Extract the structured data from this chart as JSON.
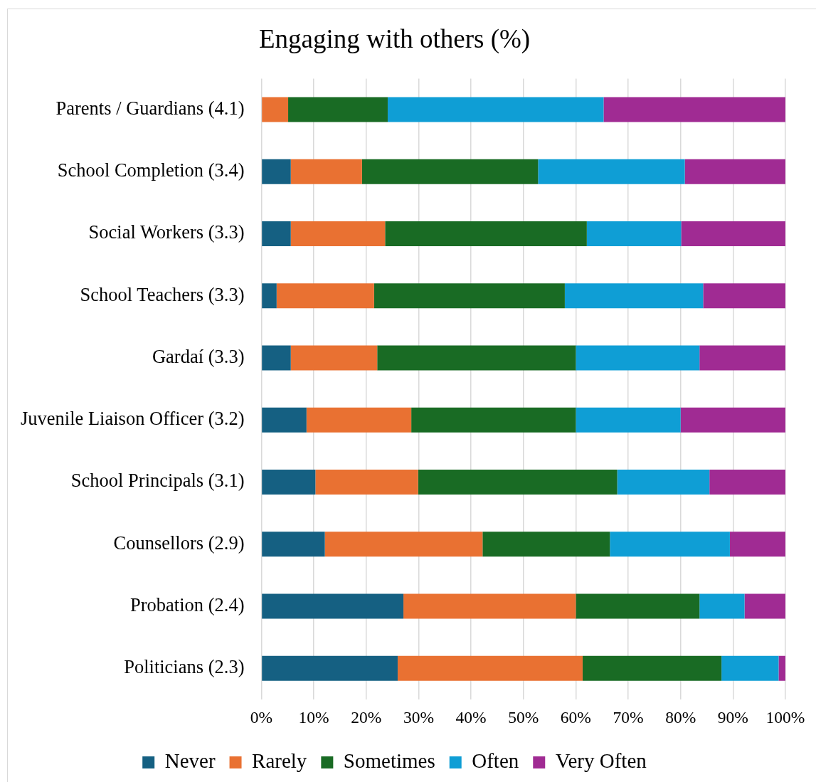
{
  "chart_data": {
    "type": "bar",
    "orientation": "horizontal",
    "stacked": true,
    "title": "Engaging with others (%)",
    "categories": [
      "Parents / Guardians (4.1)",
      "School Completion (3.4)",
      "Social Workers (3.3)",
      "School Teachers (3.3)",
      "Gardaí (3.3)",
      "Juvenile Liaison Officer (3.2)",
      "School Principals (3.1)",
      "Counsellors (2.9)",
      "Probation (2.4)",
      "Politicians (2.3)"
    ],
    "series": [
      {
        "name": "Never",
        "color": "#156082",
        "values": [
          0,
          5.6,
          5.6,
          2.9,
          5.6,
          8.6,
          10.3,
          12.1,
          27.1,
          26.0
        ]
      },
      {
        "name": "Rarely",
        "color": "#e97132",
        "values": [
          5.1,
          13.6,
          18.0,
          18.6,
          16.5,
          20.0,
          19.6,
          30.1,
          32.9,
          35.3
        ]
      },
      {
        "name": "Sometimes",
        "color": "#196b24",
        "values": [
          19.0,
          33.6,
          38.5,
          36.4,
          37.9,
          31.4,
          38.0,
          24.3,
          23.6,
          26.5
        ]
      },
      {
        "name": "Often",
        "color": "#0f9ed5",
        "values": [
          41.2,
          28.0,
          18.0,
          26.4,
          23.6,
          20.0,
          17.6,
          22.9,
          8.6,
          10.9
        ]
      },
      {
        "name": "Very Often",
        "color": "#a02b93",
        "values": [
          34.7,
          19.2,
          19.9,
          15.7,
          16.4,
          20.0,
          14.5,
          10.6,
          7.8,
          1.3
        ]
      }
    ],
    "xlim": [
      0,
      100
    ],
    "xticks": [
      {
        "value": 0,
        "label": "0%"
      },
      {
        "value": 10,
        "label": "10%"
      },
      {
        "value": 20,
        "label": "20%"
      },
      {
        "value": 30,
        "label": "30%"
      },
      {
        "value": 40,
        "label": "40%"
      },
      {
        "value": 50,
        "label": "50%"
      },
      {
        "value": 60,
        "label": "60%"
      },
      {
        "value": 70,
        "label": "70%"
      },
      {
        "value": 80,
        "label": "80%"
      },
      {
        "value": 90,
        "label": "90%"
      },
      {
        "value": 100,
        "label": "100%"
      }
    ],
    "grid": "x",
    "legend": "bottom"
  }
}
